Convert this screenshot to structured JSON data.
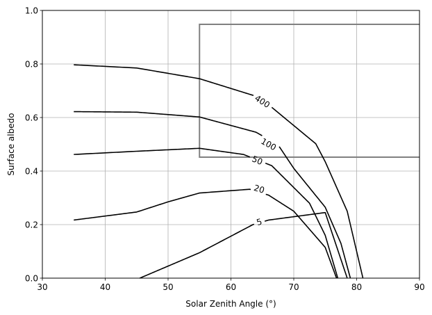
{
  "chart_data": {
    "type": "line",
    "title": "",
    "xlabel": "Solar Zenith Angle (°)",
    "ylabel": "Surface albedo",
    "xlim": [
      30,
      90
    ],
    "ylim": [
      0,
      1.0
    ],
    "grid": true,
    "x_ticks": [
      "30",
      "40",
      "50",
      "60",
      "70",
      "80",
      "90"
    ],
    "y_ticks": [
      "0.0",
      "0.2",
      "0.4",
      "0.6",
      "0.8",
      "1.0"
    ],
    "line_color": "#000000",
    "box_color": "#808080",
    "grid_color": "#b0b0b0",
    "series": [
      {
        "name": "400",
        "points": [
          [
            35,
            0.797
          ],
          [
            45,
            0.785
          ],
          [
            55,
            0.745
          ],
          [
            63.5,
            0.683
          ],
          [
            66.5,
            0.638
          ],
          [
            73.5,
            0.502
          ],
          [
            75,
            0.435
          ],
          [
            78.5,
            0.25
          ],
          [
            81,
            0.0
          ]
        ],
        "label_at": [
          65,
          0.66
        ]
      },
      {
        "name": "100",
        "points": [
          [
            35,
            0.622
          ],
          [
            45,
            0.62
          ],
          [
            55,
            0.602
          ],
          [
            64,
            0.545
          ],
          [
            67.5,
            0.498
          ],
          [
            70,
            0.41
          ],
          [
            75,
            0.265
          ],
          [
            77.5,
            0.13
          ],
          [
            79,
            0.0
          ]
        ],
        "label_at": [
          66,
          0.5
        ]
      },
      {
        "name": "50",
        "points": [
          [
            35,
            0.462
          ],
          [
            45,
            0.474
          ],
          [
            55,
            0.485
          ],
          [
            62,
            0.462
          ],
          [
            66.5,
            0.42
          ],
          [
            72.5,
            0.28
          ],
          [
            75,
            0.16
          ],
          [
            77,
            0.0
          ]
        ],
        "label_at": [
          64.2,
          0.44
        ]
      },
      {
        "name": "20",
        "points": [
          [
            35,
            0.217
          ],
          [
            45,
            0.247
          ],
          [
            50,
            0.285
          ],
          [
            55,
            0.318
          ],
          [
            63,
            0.332
          ],
          [
            66,
            0.31
          ],
          [
            70,
            0.25
          ],
          [
            75,
            0.115
          ],
          [
            76.8,
            0.0
          ]
        ],
        "label_at": [
          64.5,
          0.333
        ]
      },
      {
        "name": "5",
        "points": [
          [
            45.5,
            0.0
          ],
          [
            55,
            0.095
          ],
          [
            63.5,
            0.2
          ],
          [
            66,
            0.217
          ],
          [
            75,
            0.245
          ],
          [
            78.5,
            0.0
          ]
        ],
        "label_at": [
          64.5,
          0.21
        ]
      }
    ],
    "box": {
      "x": [
        55,
        90
      ],
      "y": [
        0.452,
        0.948
      ]
    }
  }
}
